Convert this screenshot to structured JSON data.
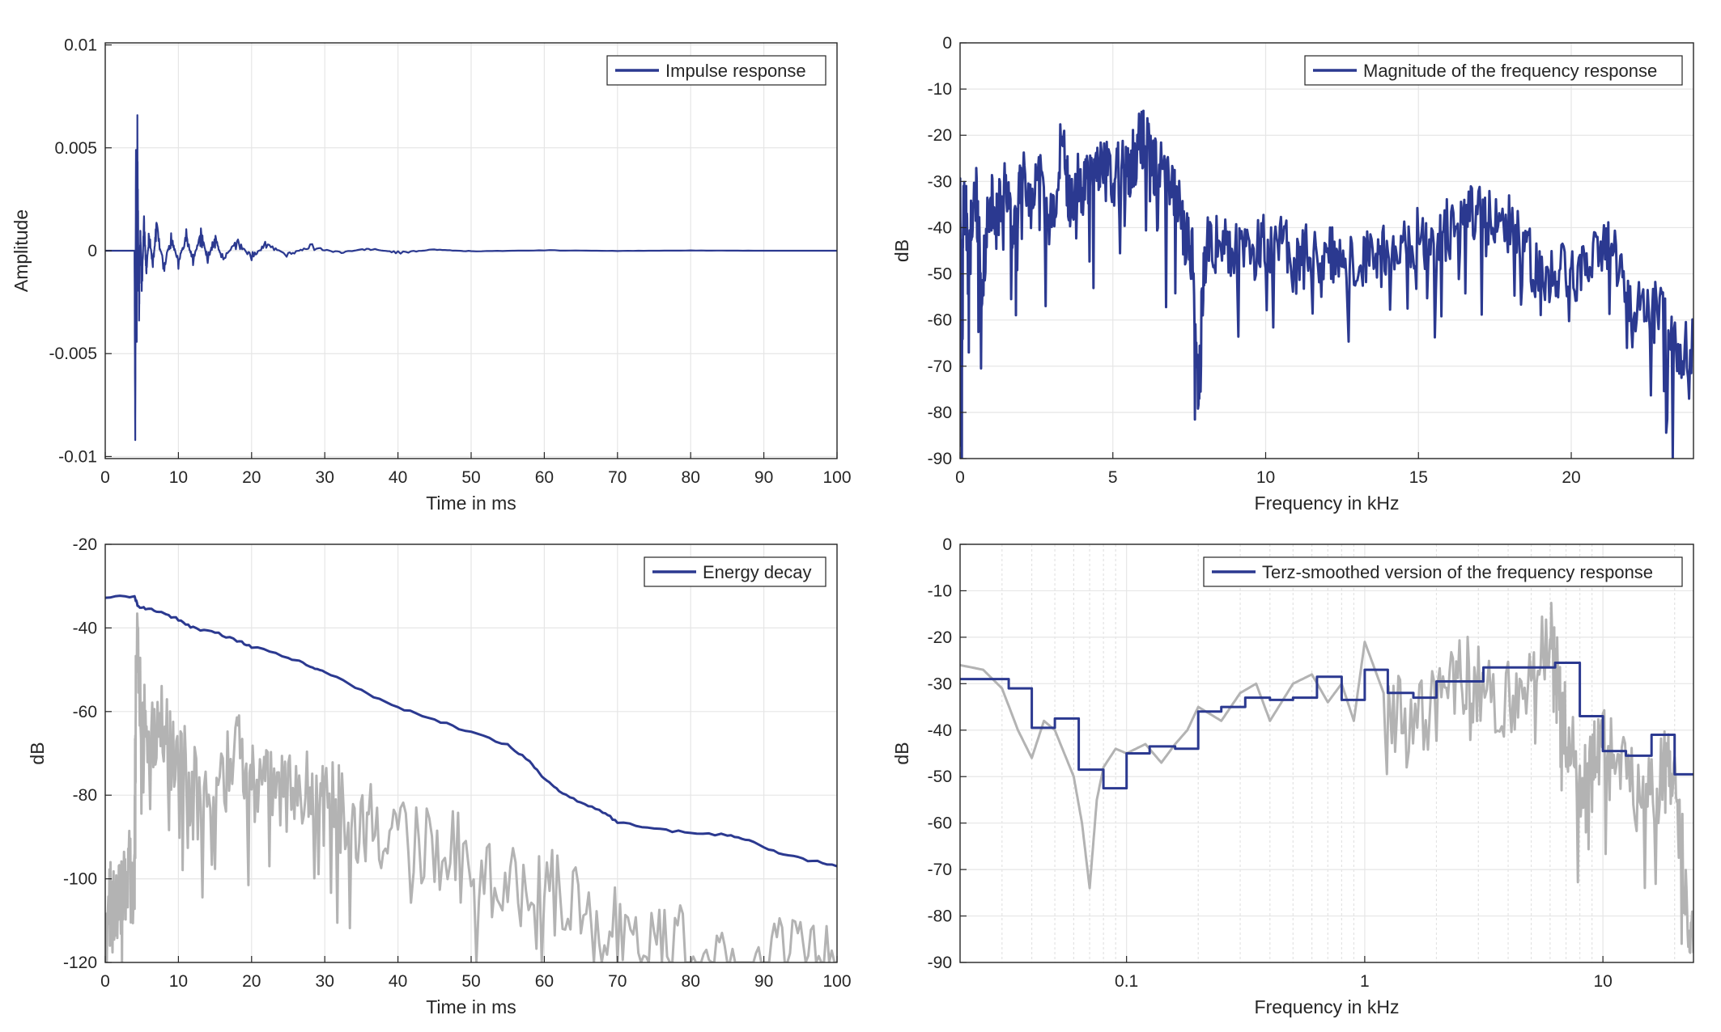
{
  "chart_data": [
    {
      "id": "impulse",
      "type": "line",
      "title": "",
      "xlabel": "Time in ms",
      "ylabel": "Amplitude",
      "xlim": [
        0,
        100
      ],
      "ylim": [
        -0.0101,
        0.0101
      ],
      "xticks": [
        0,
        10,
        20,
        30,
        40,
        50,
        60,
        70,
        80,
        90,
        100
      ],
      "xtick_labels": [
        "0",
        "10",
        "20",
        "30",
        "40",
        "50",
        "60",
        "70",
        "80",
        "90",
        "100"
      ],
      "yticks": [
        0.01,
        0.005,
        0,
        -0.005,
        -0.01
      ],
      "ytick_labels": [
        "0.01",
        "0.005",
        "0",
        "-0.005",
        "-0.01"
      ],
      "grid": true,
      "legend": {
        "position": "top-right",
        "entries": [
          "Impulse response"
        ]
      },
      "series": [
        {
          "name": "Impulse response",
          "color": "#2b3990",
          "x": [
            0,
            4.0,
            4.1,
            4.2,
            4.3,
            4.4,
            4.6,
            4.8,
            5.0,
            5.3,
            5.6,
            6.0,
            6.5,
            7.0,
            8.0,
            9.0,
            10.0,
            11.0,
            12.0,
            13.0,
            14.0,
            15.0,
            16.0,
            18.0,
            20.0,
            22.0,
            25.0,
            28.0,
            32.0,
            36.0,
            40.0,
            45.0,
            50.0,
            60.0,
            70.0,
            80.0,
            90.0,
            100.0
          ],
          "y": [
            0,
            0,
            -0.0092,
            0.0049,
            -0.003,
            0.0043,
            -0.0028,
            0.0009,
            -0.0016,
            0.0012,
            -0.0009,
            0.0007,
            -0.0006,
            0.0009,
            -0.0007,
            0.0006,
            -0.0005,
            0.0007,
            -0.0005,
            0.0009,
            -0.0004,
            0.0006,
            -0.0004,
            0.0004,
            -0.0003,
            0.0003,
            -0.0002,
            0.0002,
            -0.0001,
            0.0001,
            -0.0001,
            5e-05,
            -3e-05,
            2e-05,
            -1e-05,
            1e-05,
            0,
            0
          ]
        }
      ]
    },
    {
      "id": "magnitude",
      "type": "line",
      "title": "",
      "xlabel": "Frequency in kHz",
      "ylabel": "dB",
      "xlim": [
        0,
        24
      ],
      "ylim": [
        -90,
        0
      ],
      "xticks": [
        0,
        5,
        10,
        15,
        20
      ],
      "xtick_labels": [
        "0",
        "5",
        "10",
        "15",
        "20"
      ],
      "yticks": [
        0,
        -10,
        -20,
        -30,
        -40,
        -50,
        -60,
        -70,
        -80,
        -90
      ],
      "ytick_labels": [
        "0",
        "-10",
        "-20",
        "-30",
        "-40",
        "-50",
        "-60",
        "-70",
        "-80",
        "-90"
      ],
      "grid": true,
      "legend": {
        "position": "top-right",
        "entries": [
          "Magnitude of the frequency response"
        ]
      },
      "series": [
        {
          "name": "Magnitude of the frequency response",
          "color": "#2b3990",
          "x": [
            0,
            0.05,
            0.1,
            0.2,
            0.3,
            0.5,
            0.7,
            1.0,
            1.2,
            1.5,
            1.8,
            2.0,
            2.3,
            2.6,
            3.0,
            3.3,
            3.6,
            4.0,
            4.3,
            4.6,
            5.0,
            5.3,
            5.6,
            6.0,
            6.3,
            6.6,
            7.0,
            7.3,
            7.6,
            7.8,
            8.0,
            8.5,
            9.0,
            9.5,
            10.0,
            10.5,
            11.0,
            11.5,
            12.0,
            12.5,
            13.0,
            13.5,
            14.0,
            14.5,
            15.0,
            15.5,
            16.0,
            16.5,
            17.0,
            17.5,
            18.0,
            18.5,
            19.0,
            19.5,
            20.0,
            20.5,
            21.0,
            21.5,
            22.0,
            22.5,
            23.0,
            23.5,
            24.0
          ],
          "y": [
            -32,
            -73,
            -38,
            -34,
            -44,
            -30,
            -52,
            -34,
            -38,
            -31,
            -42,
            -28,
            -35,
            -30,
            -40,
            -20,
            -34,
            -28,
            -30,
            -26,
            -29,
            -28,
            -26,
            -20,
            -27,
            -28,
            -32,
            -40,
            -47,
            -76,
            -45,
            -42,
            -46,
            -45,
            -43,
            -44,
            -48,
            -45,
            -46,
            -44,
            -48,
            -45,
            -47,
            -43,
            -42,
            -42,
            -40,
            -38,
            -36,
            -38,
            -40,
            -44,
            -52,
            -48,
            -50,
            -48,
            -44,
            -47,
            -55,
            -57,
            -60,
            -68,
            -66
          ]
        }
      ]
    },
    {
      "id": "energy",
      "type": "line",
      "title": "",
      "xlabel": "Time in ms",
      "ylabel": "dB",
      "xlim": [
        0,
        100
      ],
      "ylim": [
        -120,
        -20
      ],
      "xticks": [
        0,
        10,
        20,
        30,
        40,
        50,
        60,
        70,
        80,
        90,
        100
      ],
      "xtick_labels": [
        "0",
        "10",
        "20",
        "30",
        "40",
        "50",
        "60",
        "70",
        "80",
        "90",
        "100"
      ],
      "yticks": [
        -20,
        -40,
        -60,
        -80,
        -100,
        -120
      ],
      "ytick_labels": [
        "-20",
        "-40",
        "-60",
        "-80",
        "-100",
        "-120"
      ],
      "grid": true,
      "legend": {
        "position": "top-right",
        "entries": [
          "Energy decay"
        ]
      },
      "series": [
        {
          "name": "",
          "color": "#b3b3b3",
          "x": [
            0,
            1,
            2,
            3,
            4,
            4.2,
            5,
            6,
            8,
            10,
            12,
            15,
            18,
            20,
            22,
            25,
            28,
            30,
            33,
            36,
            40,
            45,
            50,
            55,
            60,
            65,
            70,
            75,
            80,
            85,
            90,
            95,
            100
          ],
          "y": [
            -100,
            -108,
            -103,
            -98,
            -102,
            -42,
            -60,
            -68,
            -64,
            -75,
            -70,
            -80,
            -65,
            -78,
            -72,
            -76,
            -80,
            -82,
            -84,
            -86,
            -90,
            -92,
            -96,
            -100,
            -102,
            -106,
            -112,
            -114,
            -118,
            -116,
            -117,
            -119,
            -120
          ]
        },
        {
          "name": "Energy decay",
          "color": "#2b3990",
          "x": [
            0,
            4,
            4.5,
            6,
            8,
            10,
            12,
            15,
            18,
            20,
            25,
            28,
            30,
            35,
            40,
            45,
            50,
            55,
            58,
            60,
            62,
            65,
            68,
            70,
            75,
            80,
            85,
            88,
            92,
            96,
            100
          ],
          "y": [
            -32.5,
            -32.5,
            -35,
            -35.5,
            -36.5,
            -38,
            -40,
            -41,
            -43,
            -44.5,
            -47,
            -49,
            -50.5,
            -55,
            -59,
            -62,
            -65,
            -68,
            -72,
            -76,
            -79,
            -82,
            -84,
            -86.5,
            -88,
            -89,
            -89.5,
            -91,
            -94,
            -95.5,
            -97
          ]
        }
      ]
    },
    {
      "id": "terz",
      "type": "line",
      "title": "",
      "xlabel": "Frequency in kHz",
      "ylabel": "dB",
      "xscale": "log",
      "xlim": [
        0.02,
        24
      ],
      "ylim": [
        -90,
        0
      ],
      "xticks": [
        0.1,
        1,
        10
      ],
      "xtick_labels": [
        "0.1",
        "1",
        "10"
      ],
      "yticks": [
        0,
        -10,
        -20,
        -30,
        -40,
        -50,
        -60,
        -70,
        -80,
        -90
      ],
      "ytick_labels": [
        "0",
        "-10",
        "-20",
        "-30",
        "-40",
        "-50",
        "-60",
        "-70",
        "-80",
        "-90"
      ],
      "grid": true,
      "legend": {
        "position": "top-right",
        "entries": [
          "Terz-smoothed version of the frequency response"
        ]
      },
      "series": [
        {
          "name": "",
          "color": "#b3b3b3",
          "x": [
            0.02,
            0.025,
            0.03,
            0.035,
            0.04,
            0.045,
            0.05,
            0.06,
            0.065,
            0.07,
            0.075,
            0.08,
            0.09,
            0.1,
            0.12,
            0.14,
            0.16,
            0.18,
            0.2,
            0.25,
            0.3,
            0.35,
            0.4,
            0.5,
            0.6,
            0.7,
            0.8,
            0.9,
            1.0,
            1.2,
            1.5,
            2.0,
            2.5,
            3.0,
            4.0,
            5.0,
            6.0,
            6.5,
            7.0,
            8.0,
            9.0,
            10.0,
            12.0,
            15.0,
            18.0,
            20.0,
            22.0,
            24.0
          ],
          "y": [
            -26,
            -27,
            -31,
            -40,
            -46,
            -38,
            -40,
            -50,
            -60,
            -74,
            -55,
            -48,
            -44,
            -45,
            -43,
            -47,
            -43,
            -40,
            -35,
            -38,
            -32,
            -30,
            -38,
            -30,
            -28,
            -34,
            -30,
            -38,
            -21,
            -32,
            -40,
            -35,
            -28,
            -30,
            -34,
            -27,
            -20,
            -30,
            -40,
            -50,
            -45,
            -42,
            -50,
            -55,
            -48,
            -52,
            -70,
            -88
          ]
        },
        {
          "name": "Terz-smoothed version of the frequency response",
          "color": "#2b3990",
          "x": [
            0.02,
            0.025,
            0.032,
            0.04,
            0.05,
            0.063,
            0.08,
            0.1,
            0.125,
            0.16,
            0.2,
            0.25,
            0.315,
            0.4,
            0.5,
            0.63,
            0.8,
            1.0,
            1.25,
            1.6,
            2.0,
            2.5,
            3.15,
            4.0,
            5.0,
            6.3,
            8.0,
            10.0,
            12.5,
            16.0,
            20.0,
            24.0
          ],
          "y": [
            -29,
            -29,
            -31,
            -39.5,
            -37.5,
            -48.5,
            -52.5,
            -45,
            -43.5,
            -44,
            -36,
            -35,
            -33,
            -33.5,
            -33,
            -28.5,
            -33.5,
            -27,
            -32,
            -33,
            -29.5,
            -29.5,
            -26.5,
            -26.5,
            -26.5,
            -25.5,
            -37,
            -44.5,
            -45.5,
            -41,
            -49.5,
            -49.5
          ]
        }
      ]
    }
  ]
}
